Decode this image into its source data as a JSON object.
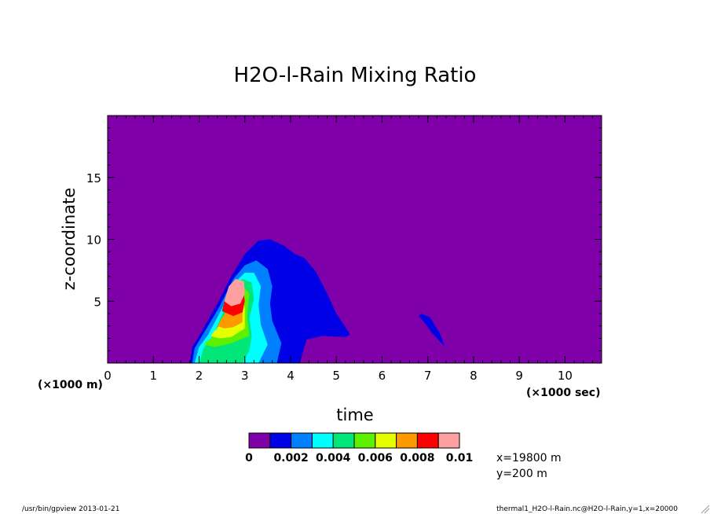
{
  "chart_data": {
    "type": "heatmap",
    "title": "H2O-l-Rain Mixing Ratio",
    "xlabel": "time",
    "ylabel": "z-coordinate",
    "x_unit": "(×1000 sec)",
    "y_unit": "(×1000 m)",
    "xlim": [
      0,
      10.8
    ],
    "ylim": [
      0,
      20
    ],
    "x_ticks": [
      0,
      1,
      2,
      3,
      4,
      5,
      6,
      7,
      8,
      9,
      10
    ],
    "y_ticks": [
      5,
      10,
      15
    ],
    "x_tick_labels": [
      "0",
      "1",
      "2",
      "3",
      "4",
      "5",
      "6",
      "7",
      "8",
      "9",
      "10"
    ],
    "y_tick_labels": [
      "5",
      "10",
      "15"
    ],
    "colorbar": {
      "tick_labels": [
        "0",
        "0.002",
        "0.004",
        "0.006",
        "0.008",
        "0.01"
      ],
      "colors": [
        "#7f00a8",
        "#0000e6",
        "#0080ff",
        "#00ffff",
        "#00e678",
        "#5ef000",
        "#e6ff00",
        "#ff9900",
        "#ff0000",
        "#ffa0a0"
      ]
    },
    "contours": [
      {
        "level": 0.0,
        "points": [
          [
            1.8,
            0
          ],
          [
            1.85,
            1.3
          ],
          [
            2.0,
            2.2
          ],
          [
            2.4,
            4.8
          ],
          [
            2.7,
            7.0
          ],
          [
            3.0,
            8.8
          ],
          [
            3.3,
            9.9
          ],
          [
            3.55,
            10.0
          ],
          [
            3.85,
            9.5
          ],
          [
            4.1,
            8.8
          ],
          [
            4.3,
            8.5
          ],
          [
            4.55,
            7.4
          ],
          [
            4.8,
            5.6
          ],
          [
            5.0,
            4.0
          ],
          [
            5.2,
            2.9
          ],
          [
            5.3,
            2.3
          ],
          [
            5.2,
            2.1
          ],
          [
            4.7,
            2.2
          ],
          [
            4.35,
            1.9
          ],
          [
            4.2,
            0
          ]
        ]
      },
      {
        "level": 0.0,
        "points": [
          [
            6.85,
            4.0
          ],
          [
            7.05,
            3.7
          ],
          [
            7.25,
            2.5
          ],
          [
            7.38,
            1.3
          ],
          [
            7.3,
            1.6
          ],
          [
            7.1,
            2.4
          ],
          [
            6.9,
            3.4
          ],
          [
            6.8,
            3.8
          ]
        ]
      },
      {
        "level": 0.001,
        "points": [
          [
            1.85,
            0
          ],
          [
            1.9,
            1.2
          ],
          [
            2.1,
            2.4
          ],
          [
            2.45,
            4.6
          ],
          [
            2.75,
            6.8
          ],
          [
            3.0,
            7.9
          ],
          [
            3.25,
            8.3
          ],
          [
            3.5,
            7.6
          ],
          [
            3.6,
            6.2
          ],
          [
            3.55,
            4.8
          ],
          [
            3.6,
            3.4
          ],
          [
            3.8,
            1.6
          ],
          [
            3.7,
            0
          ]
        ]
      },
      {
        "level": 0.002,
        "points": [
          [
            1.9,
            0
          ],
          [
            2.0,
            1.3
          ],
          [
            2.2,
            2.3
          ],
          [
            2.5,
            4.4
          ],
          [
            2.75,
            6.4
          ],
          [
            3.0,
            7.3
          ],
          [
            3.2,
            7.3
          ],
          [
            3.35,
            6.2
          ],
          [
            3.3,
            4.7
          ],
          [
            3.35,
            3.1
          ],
          [
            3.5,
            1.5
          ],
          [
            3.3,
            0
          ]
        ]
      },
      {
        "level": 0.003,
        "points": [
          [
            2.0,
            0
          ],
          [
            2.1,
            1.2
          ],
          [
            2.3,
            2.2
          ],
          [
            2.55,
            4.3
          ],
          [
            2.75,
            6.1
          ],
          [
            2.95,
            6.8
          ],
          [
            3.15,
            6.5
          ],
          [
            3.2,
            5.2
          ],
          [
            3.1,
            3.6
          ],
          [
            3.15,
            2.2
          ],
          [
            3.1,
            1.0
          ],
          [
            2.95,
            0
          ]
        ]
      },
      {
        "level": 0.004,
        "points": [
          [
            2.1,
            1.5
          ],
          [
            2.35,
            2.3
          ],
          [
            2.6,
            4.2
          ],
          [
            2.75,
            5.7
          ],
          [
            2.95,
            6.3
          ],
          [
            3.1,
            5.6
          ],
          [
            3.05,
            3.9
          ],
          [
            3.1,
            2.2
          ],
          [
            2.7,
            1.6
          ],
          [
            2.35,
            1.3
          ]
        ]
      },
      {
        "level": 0.005,
        "points": [
          [
            2.25,
            2.2
          ],
          [
            2.5,
            3.3
          ],
          [
            2.65,
            4.7
          ],
          [
            2.8,
            5.8
          ],
          [
            2.95,
            5.7
          ],
          [
            3.0,
            4.4
          ],
          [
            3.0,
            2.8
          ],
          [
            2.7,
            2.1
          ],
          [
            2.45,
            2.0
          ]
        ]
      },
      {
        "level": 0.006,
        "points": [
          [
            2.4,
            3.0
          ],
          [
            2.6,
            4.2
          ],
          [
            2.75,
            5.6
          ],
          [
            2.9,
            5.7
          ],
          [
            2.95,
            4.5
          ],
          [
            2.95,
            3.3
          ],
          [
            2.75,
            2.9
          ],
          [
            2.55,
            2.8
          ]
        ]
      },
      {
        "level": 0.007,
        "points": [
          [
            2.5,
            4.2
          ],
          [
            2.6,
            5.6
          ],
          [
            2.75,
            6.5
          ],
          [
            2.95,
            6.4
          ],
          [
            3.0,
            5.0
          ],
          [
            2.95,
            4.1
          ],
          [
            2.75,
            3.8
          ]
        ]
      },
      {
        "level": 0.008,
        "points": [
          [
            2.55,
            5.0
          ],
          [
            2.65,
            6.2
          ],
          [
            2.8,
            6.8
          ],
          [
            2.98,
            6.6
          ],
          [
            3.0,
            5.6
          ],
          [
            2.9,
            4.8
          ],
          [
            2.7,
            4.6
          ]
        ]
      },
      {
        "level": 0.009,
        "points": [
          [
            2.6,
            5.4
          ],
          [
            2.7,
            6.1
          ],
          [
            2.85,
            6.3
          ],
          [
            2.95,
            5.9
          ],
          [
            2.9,
            5.3
          ],
          [
            2.75,
            5.1
          ]
        ]
      },
      {
        "level": 0.01,
        "points": [
          [
            2.65,
            5.6
          ],
          [
            2.75,
            6.0
          ],
          [
            2.88,
            5.9
          ],
          [
            2.88,
            5.5
          ],
          [
            2.75,
            5.35
          ]
        ]
      }
    ]
  },
  "info": {
    "slice_x": "x=19800 m",
    "slice_y": "y=200 m",
    "footer_left": "/usr/bin/gpview  2013-01-21",
    "footer_right": "thermal1_H2O-l-Rain.nc@H2O-l-Rain,y=1,x=20000"
  }
}
